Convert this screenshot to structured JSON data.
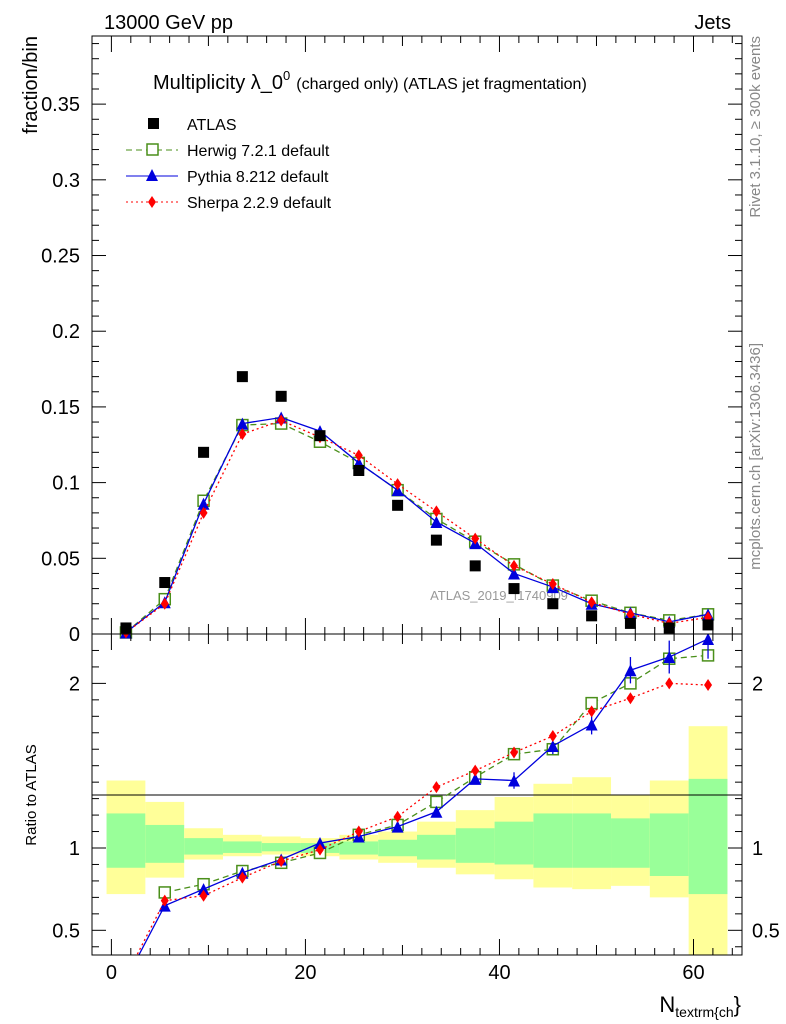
{
  "header": {
    "left": "13000 GeV pp",
    "right": "Jets"
  },
  "side": {
    "rivet": "Rivet 3.1.10, ≥ 300k events",
    "mcplots": "mcplots.cern.ch [arXiv:1306.3436]"
  },
  "watermark": "ATLAS_2019_I1740909",
  "chart_data": {
    "type": "scatter",
    "title_main": "Multiplicity λ_0",
    "title_sup": "0",
    "title_rest": "(charged only) (ATLAS jet fragmentation)",
    "ylabel": "fraction/bin",
    "xlabel_main": "N",
    "xlabel_sub": "textrm{ch",
    "xlabel_close": "}",
    "ratio_ylabel": "Ratio to ATLAS",
    "xlim": [
      -2,
      65
    ],
    "ylim": [
      0,
      0.395
    ],
    "ratio_ylim": [
      0.35,
      2.3
    ],
    "x_ticks": [
      0,
      20,
      40,
      60
    ],
    "x_tick_labels": [
      "0",
      "20",
      "40",
      "60"
    ],
    "y_ticks": [
      0,
      0.05,
      0.1,
      0.15,
      0.2,
      0.25,
      0.3,
      0.35
    ],
    "y_tick_labels": [
      "0",
      "0.05",
      "0.1",
      "0.15",
      "0.2",
      "0.25",
      "0.3",
      "0.35"
    ],
    "ratio_ticks": [
      0.5,
      1,
      2
    ],
    "ratio_tick_labels": [
      "0.5",
      "1",
      "2"
    ],
    "x": [
      1.5,
      5.5,
      9.5,
      13.5,
      17.5,
      21.5,
      25.5,
      29.5,
      33.5,
      37.5,
      41.5,
      45.5,
      49.5,
      53.5,
      57.5,
      61.5
    ],
    "bin_edges": [
      -0.5,
      3.5,
      7.5,
      11.5,
      15.5,
      19.5,
      23.5,
      27.5,
      31.5,
      35.5,
      39.5,
      43.5,
      47.5,
      51.5,
      55.5,
      59.5,
      63.5
    ],
    "data": {
      "name": "ATLAS",
      "values": [
        0.004,
        0.034,
        0.12,
        0.17,
        0.157,
        0.131,
        0.108,
        0.085,
        0.062,
        0.045,
        0.03,
        0.02,
        0.012,
        0.007,
        0.004,
        0.006
      ]
    },
    "series": [
      {
        "name": "Herwig 7.2.1 default",
        "color": "#4a8f1a",
        "marker": "open-square",
        "dash": "6,4",
        "values": [
          0.001,
          0.023,
          0.088,
          0.138,
          0.139,
          0.127,
          0.113,
          0.095,
          0.076,
          0.061,
          0.046,
          0.032,
          0.022,
          0.014,
          0.009,
          0.013
        ],
        "ratio": [
          null,
          0.73,
          0.78,
          0.86,
          0.91,
          0.97,
          1.08,
          1.14,
          1.28,
          1.43,
          1.57,
          1.6,
          1.88,
          2.0,
          2.15,
          2.17
        ]
      },
      {
        "name": "Pythia 8.212 default",
        "color": "#0000dd",
        "marker": "triangle",
        "dash": "",
        "values": [
          0.001,
          0.021,
          0.086,
          0.139,
          0.143,
          0.134,
          0.113,
          0.095,
          0.074,
          0.06,
          0.04,
          0.031,
          0.02,
          0.014,
          0.008,
          0.013
        ],
        "errors": [
          0.0003,
          0.001,
          0.003,
          0.003,
          0.003,
          0.003,
          0.002,
          0.002,
          0.002,
          0.002,
          0.002,
          0.001,
          0.001,
          0.001,
          0.001,
          0.001
        ],
        "ratio": [
          0.2,
          0.65,
          0.75,
          0.85,
          0.93,
          1.03,
          1.07,
          1.13,
          1.22,
          1.42,
          1.41,
          1.62,
          1.75,
          2.08,
          2.16,
          2.27
        ],
        "ratio_err": [
          0.02,
          0.02,
          0.02,
          0.02,
          0.02,
          0.02,
          0.02,
          0.02,
          0.03,
          0.03,
          0.05,
          0.05,
          0.06,
          0.08,
          0.1,
          0.12
        ]
      },
      {
        "name": "Sherpa 2.2.9 default",
        "color": "#ff0000",
        "marker": "diamond",
        "dash": "2,3",
        "values": [
          0.001,
          0.02,
          0.08,
          0.132,
          0.141,
          0.13,
          0.118,
          0.099,
          0.081,
          0.063,
          0.045,
          0.033,
          0.021,
          0.013,
          0.007,
          0.011
        ],
        "ratio": [
          0.22,
          0.68,
          0.71,
          0.82,
          0.92,
          0.99,
          1.1,
          1.19,
          1.37,
          1.47,
          1.58,
          1.68,
          1.83,
          1.91,
          2.0,
          1.99
        ]
      }
    ],
    "bands": {
      "yellow_lo": [
        0.72,
        0.82,
        0.93,
        0.95,
        0.96,
        0.95,
        0.93,
        0.91,
        0.88,
        0.84,
        0.81,
        0.76,
        0.75,
        0.77,
        0.7,
        0.0
      ],
      "yellow_hi": [
        1.41,
        1.28,
        1.12,
        1.08,
        1.07,
        1.06,
        1.08,
        1.1,
        1.16,
        1.23,
        1.31,
        1.39,
        1.43,
        1.32,
        1.41,
        1.74
      ],
      "green_lo": [
        0.88,
        0.91,
        0.96,
        0.97,
        0.98,
        0.97,
        0.96,
        0.95,
        0.93,
        0.91,
        0.9,
        0.88,
        0.88,
        0.88,
        0.83,
        0.72
      ],
      "green_hi": [
        1.21,
        1.14,
        1.06,
        1.04,
        1.03,
        1.03,
        1.04,
        1.05,
        1.08,
        1.12,
        1.16,
        1.21,
        1.21,
        1.18,
        1.21,
        1.42
      ]
    }
  }
}
